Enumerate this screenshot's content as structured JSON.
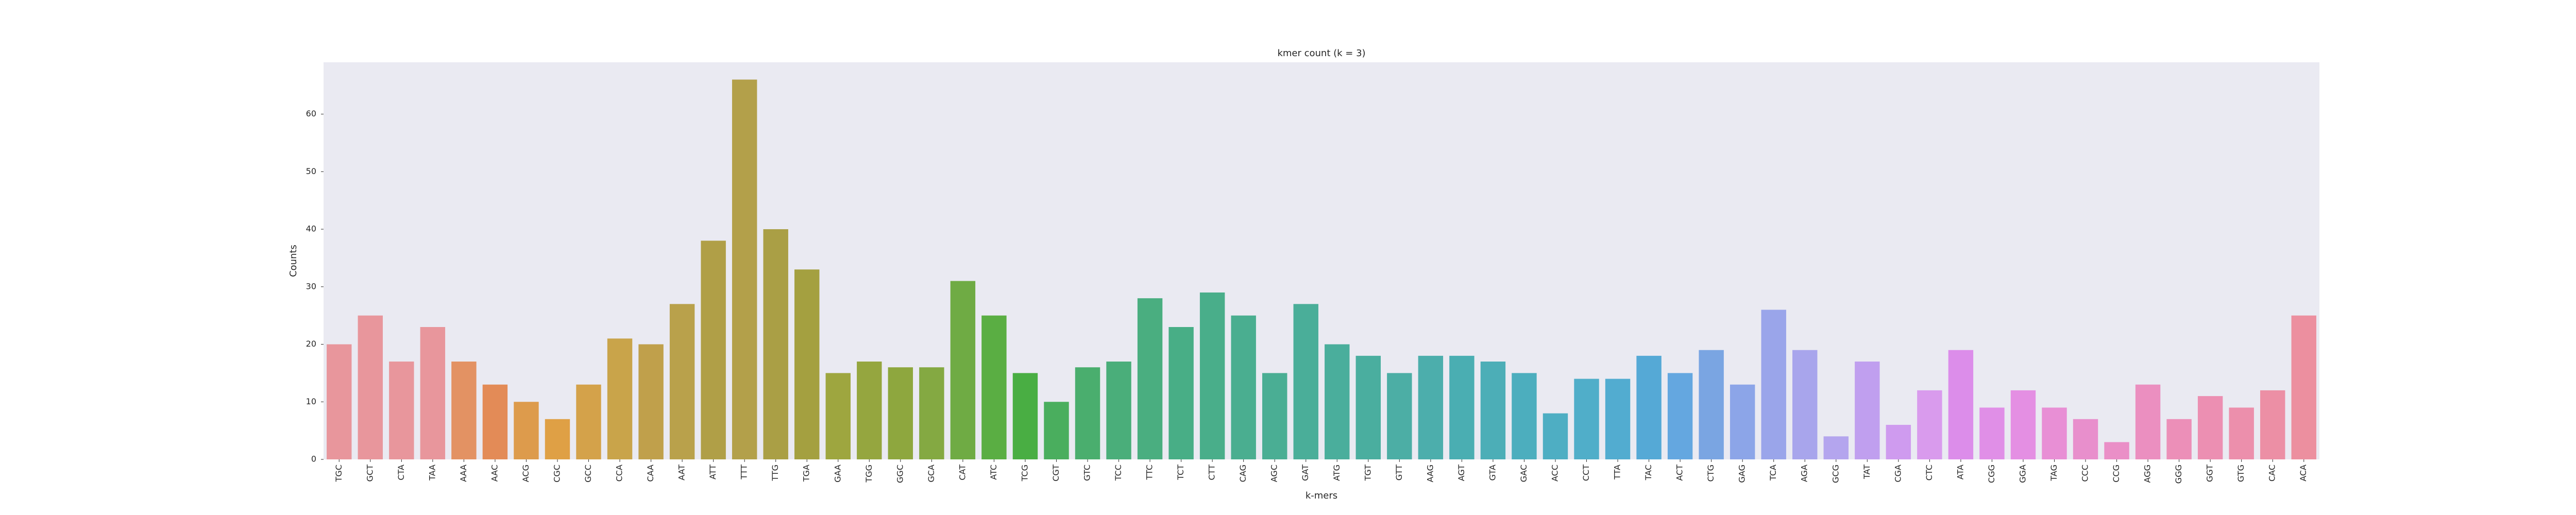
{
  "chart_data": {
    "type": "bar",
    "title": "kmer count (k = 3)",
    "xlabel": "k-mers",
    "ylabel": "Counts",
    "ylim": [
      0,
      69
    ],
    "yticks": [
      0,
      10,
      20,
      30,
      40,
      50,
      60
    ],
    "grid": false,
    "background": "#eaeaf2",
    "categories": [
      "TGC",
      "GCT",
      "CTA",
      "TAA",
      "AAA",
      "AAC",
      "ACG",
      "CGC",
      "GCC",
      "CCA",
      "CAA",
      "AAT",
      "ATT",
      "TTT",
      "TTG",
      "TGA",
      "GAA",
      "TGG",
      "GGC",
      "GCA",
      "CAT",
      "ATC",
      "TCG",
      "CGT",
      "GTC",
      "TCC",
      "TTC",
      "TCT",
      "CTT",
      "CAG",
      "AGC",
      "GAT",
      "ATG",
      "TGT",
      "GTT",
      "AAG",
      "AGT",
      "GTA",
      "GAC",
      "ACC",
      "CCT",
      "TTA",
      "TAC",
      "ACT",
      "CTG",
      "GAG",
      "TCA",
      "AGA",
      "GCG",
      "TAT",
      "CGA",
      "CTC",
      "ATA",
      "CGG",
      "GGA",
      "TAG",
      "CCC",
      "CCG",
      "AGG",
      "GGG",
      "GGT",
      "GTG",
      "CAC",
      "ACA"
    ],
    "values": [
      20,
      25,
      17,
      23,
      17,
      13,
      10,
      7,
      13,
      21,
      20,
      27,
      38,
      66,
      40,
      33,
      15,
      17,
      16,
      16,
      31,
      25,
      15,
      10,
      16,
      17,
      28,
      23,
      29,
      25,
      15,
      27,
      20,
      18,
      15,
      18,
      18,
      17,
      15,
      8,
      14,
      14,
      18,
      15,
      19,
      13,
      26,
      19,
      4,
      17,
      6,
      12,
      19,
      9,
      12,
      9,
      7,
      3,
      13,
      7,
      11,
      9,
      12,
      25
    ],
    "colors": [
      "#e8969c",
      "#e8969c",
      "#e8969c",
      "#e8969c",
      "#e39263",
      "#e38b57",
      "#dd9b4c",
      "#dfa045",
      "#d4a24a",
      "#c9a44a",
      "#c0a04b",
      "#b9a14b",
      "#b09f47",
      "#b3a04a",
      "#aa9f45",
      "#a4a040",
      "#9ea63f",
      "#95a63f",
      "#8ea73e",
      "#84a942",
      "#6fab44",
      "#5aae43",
      "#49ae43",
      "#4aae5e",
      "#4aae6e",
      "#4aae7a",
      "#4aae80",
      "#48ae86",
      "#49ae8a",
      "#4aae90",
      "#4aae94",
      "#4aae99",
      "#4aae9c",
      "#4aae9f",
      "#4caea5",
      "#4caeac",
      "#4aaeb2",
      "#4caeb7",
      "#4caebe",
      "#4eaec3",
      "#50aec9",
      "#52acd0",
      "#55a9d6",
      "#64a7e0",
      "#7aa5e2",
      "#8ca5e8",
      "#9aa5ea",
      "#a8a5ec",
      "#b4a5ee",
      "#c09fef",
      "#cf9bef",
      "#d99bed",
      "#dc8dea",
      "#e08fe7",
      "#e48fe3",
      "#e88fd5",
      "#e88fcc",
      "#ea8fc7",
      "#eb8fc0",
      "#ec8fb8",
      "#ec8fb2",
      "#ec8fac",
      "#ec8fa5",
      "#ec8f9f"
    ]
  }
}
